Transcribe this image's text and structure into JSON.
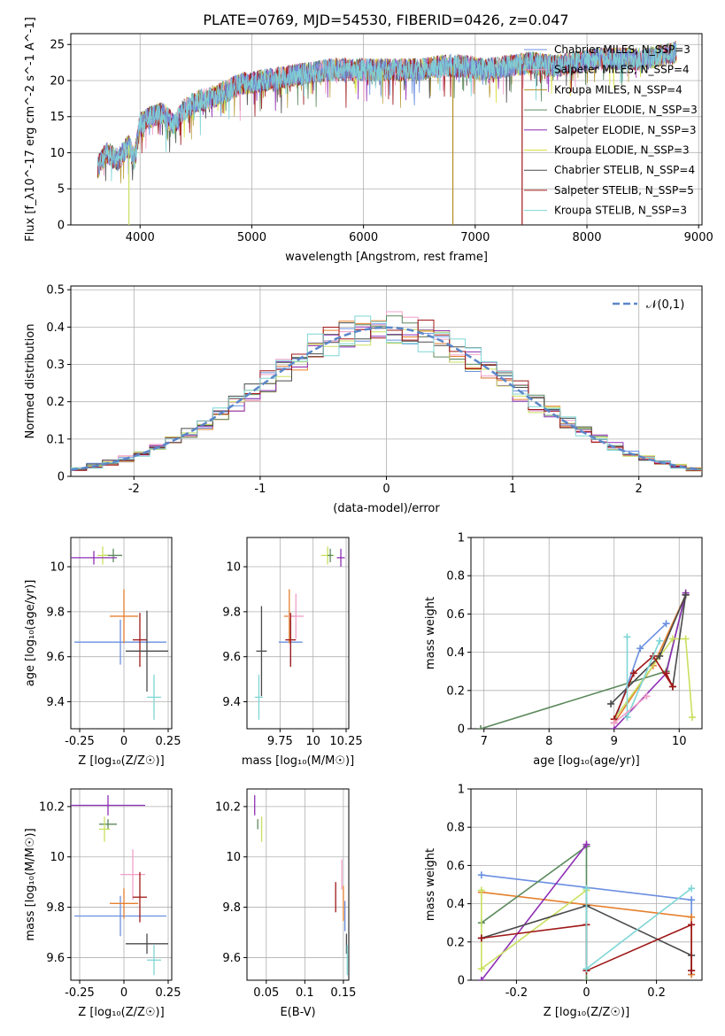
{
  "title": "PLATE=0769, MJD=54530, FIBERID=0426, z=0.047",
  "colors": [
    "#6a8fe0",
    "#e5802e",
    "#8e8e8e",
    "#5d8a5d",
    "#8e2fb5",
    "#c9e060",
    "#4a4a4a",
    "#a01818",
    "#7fd6d6"
  ],
  "chart_data": [
    {
      "id": "spectrum",
      "type": "line",
      "xlabel": "wavelength [Angstrom, rest frame]",
      "ylabel": "Flux [f_λ10^-17 erg cm^-2 s^-1 A^-1]",
      "xlim": [
        3380,
        9030
      ],
      "ylim": [
        0,
        26.5
      ],
      "xticks": [
        4000,
        5000,
        6000,
        7000,
        8000,
        9000
      ],
      "yticks": [
        0,
        5,
        10,
        15,
        20,
        25
      ],
      "legend_position": "right",
      "series": [
        {
          "name": "Chabrier MILES, N_SSP=3",
          "color": "#6a8fe0"
        },
        {
          "name": "Salpeter MILES, N_SSP=4",
          "color": "#f0a0c8"
        },
        {
          "name": "Kroupa MILES, N_SSP=4",
          "color": "#b09020"
        },
        {
          "name": "Chabrier ELODIE, N_SSP=3",
          "color": "#5d8a5d"
        },
        {
          "name": "Salpeter ELODIE, N_SSP=3",
          "color": "#8e2fb5"
        },
        {
          "name": "Kroupa ELODIE, N_SSP=3",
          "color": "#d8e040"
        },
        {
          "name": "Chabrier STELIB, N_SSP=4",
          "color": "#4a4a4a"
        },
        {
          "name": "Salpeter STELIB, N_SSP=5",
          "color": "#a01818"
        },
        {
          "name": "Kroupa STELIB, N_SSP=3",
          "color": "#7fd6d6"
        }
      ],
      "envelope": {
        "x": [
          3620,
          3700,
          3800,
          3900,
          3950,
          4000,
          4100,
          4200,
          4300,
          4400,
          4500,
          4700,
          4900,
          5100,
          5300,
          5500,
          5700,
          5900,
          6100,
          6300,
          6500,
          6700,
          6900,
          7100,
          7300,
          7500,
          7700,
          7900,
          8100,
          8300,
          8500,
          8700,
          8800
        ],
        "y": [
          8,
          10,
          9,
          11,
          9,
          14,
          15,
          15.5,
          14,
          16,
          17,
          18,
          19.5,
          20,
          20.5,
          21,
          21.5,
          21.5,
          21.5,
          21.5,
          21.5,
          22,
          22,
          21.5,
          22,
          22.5,
          22,
          22.5,
          23,
          23,
          23,
          23.5,
          24
        ]
      }
    },
    {
      "id": "residuals",
      "type": "histogram",
      "xlabel": "(data-model)/error",
      "ylabel": "Normed distribution",
      "xlim": [
        -2.5,
        2.5
      ],
      "ylim": [
        0,
        0.51
      ],
      "xticks": [
        -2,
        -1,
        0,
        1,
        2
      ],
      "yticks": [
        0.0,
        0.1,
        0.2,
        0.3,
        0.4,
        0.5
      ],
      "legend": [
        {
          "name": "𝒩(0,1)",
          "color": "#6a8fe0",
          "style": "dashed"
        }
      ],
      "legend_position": "top-right",
      "reference_curve": "normal(0,1)"
    },
    {
      "id": "age-vs-Z",
      "type": "errorbar",
      "xlabel": "Z [log₁₀(Z/Z☉)]",
      "ylabel": "age  [log₁₀(age/yr)]",
      "xlim": [
        -0.3,
        0.27
      ],
      "ylim": [
        9.28,
        10.13
      ],
      "xticks": [
        -0.25,
        0.0,
        0.25
      ],
      "yticks": [
        9.4,
        9.6,
        9.8,
        10.0
      ],
      "points": [
        {
          "x": -0.02,
          "xerr": 0.26,
          "y": 9.665,
          "yerr": 0.1,
          "color": "#6a8fe0"
        },
        {
          "x": 0.0,
          "xerr": 0.08,
          "y": 9.78,
          "yerr": 0.12,
          "color": "#e5802e"
        },
        {
          "x": 0.09,
          "xerr": 0.04,
          "y": 9.675,
          "yerr": 0.12,
          "color": "#a01818"
        },
        {
          "x": 0.13,
          "xerr": 0.12,
          "y": 9.625,
          "yerr": 0.18,
          "color": "#4a4a4a"
        },
        {
          "x": 0.17,
          "xerr": 0.04,
          "y": 9.42,
          "yerr": 0.1,
          "color": "#7fd6d6"
        },
        {
          "x": -0.06,
          "xerr": 0.05,
          "y": 10.05,
          "yerr": 0.03,
          "color": "#5d8a5d"
        },
        {
          "x": -0.12,
          "xerr": 0.03,
          "y": 10.05,
          "yerr": 0.04,
          "color": "#c9e060"
        },
        {
          "x": -0.17,
          "xerr": 0.13,
          "y": 10.04,
          "yerr": 0.03,
          "color": "#8e2fb5"
        }
      ]
    },
    {
      "id": "age-vs-mass",
      "type": "errorbar",
      "xlabel": "mass [log₁₀(M/M☉)]",
      "ylabel": "",
      "xlim": [
        9.5,
        10.27
      ],
      "ylim": [
        9.28,
        10.13
      ],
      "xticks": [
        9.75,
        10.0,
        10.25
      ],
      "yticks": [
        9.4,
        9.6,
        9.8,
        10.0
      ],
      "points": [
        {
          "x": 9.61,
          "xerr": 0.04,
          "y": 9.625,
          "yerr": 0.2,
          "color": "#4a4a4a"
        },
        {
          "x": 9.59,
          "xerr": 0.03,
          "y": 9.42,
          "yerr": 0.1,
          "color": "#7fd6d6"
        },
        {
          "x": 9.83,
          "xerr": 0.09,
          "y": 9.665,
          "yerr": 0.1,
          "color": "#6a8fe0"
        },
        {
          "x": 9.82,
          "xerr": 0.04,
          "y": 9.78,
          "yerr": 0.12,
          "color": "#e5802e"
        },
        {
          "x": 9.87,
          "xerr": 0.06,
          "y": 9.78,
          "yerr": 0.1,
          "color": "#f0a0c8"
        },
        {
          "x": 9.83,
          "xerr": 0.04,
          "y": 9.675,
          "yerr": 0.12,
          "color": "#a01818"
        },
        {
          "x": 10.11,
          "xerr": 0.05,
          "y": 10.05,
          "yerr": 0.04,
          "color": "#c9e060"
        },
        {
          "x": 10.13,
          "xerr": 0.02,
          "y": 10.05,
          "yerr": 0.03,
          "color": "#5d8a5d"
        },
        {
          "x": 10.21,
          "xerr": 0.03,
          "y": 10.04,
          "yerr": 0.04,
          "color": "#8e2fb5"
        }
      ]
    },
    {
      "id": "weight-vs-age",
      "type": "line",
      "xlabel": "age  [log₁₀(age/yr)]",
      "ylabel": "mass weight",
      "xlim": [
        6.8,
        10.35
      ],
      "ylim": [
        0,
        1.0
      ],
      "xticks": [
        7,
        8,
        9,
        10
      ],
      "yticks": [
        0.0,
        0.2,
        0.4,
        0.6,
        0.8,
        1.0
      ],
      "series": [
        {
          "color": "#6a8fe0",
          "x": [
            9.0,
            9.4,
            9.8
          ],
          "y": [
            0.03,
            0.42,
            0.55
          ]
        },
        {
          "color": "#e5802e",
          "x": [
            9.0,
            9.6,
            10.1
          ],
          "y": [
            0.03,
            0.33,
            0.7
          ]
        },
        {
          "color": "#5d8a5d",
          "x": [
            6.95,
            9.8,
            10.1
          ],
          "y": [
            0.0,
            0.3,
            0.7
          ]
        },
        {
          "color": "#8e2fb5",
          "x": [
            9.0,
            9.8,
            10.1
          ],
          "y": [
            0.0,
            0.29,
            0.71
          ]
        },
        {
          "color": "#c9e060",
          "x": [
            9.0,
            9.9,
            10.1,
            10.2
          ],
          "y": [
            0.05,
            0.47,
            0.47,
            0.06
          ]
        },
        {
          "color": "#4a4a4a",
          "x": [
            8.95,
            9.7,
            10.1,
            9.9
          ],
          "y": [
            0.13,
            0.38,
            0.7,
            0.22
          ]
        },
        {
          "color": "#a01818",
          "x": [
            9.0,
            9.3,
            9.6,
            9.9,
            9.8
          ],
          "y": [
            0.05,
            0.29,
            0.38,
            0.22,
            0.29
          ]
        },
        {
          "color": "#7fd6d6",
          "x": [
            9.2,
            9.2,
            9.7
          ],
          "y": [
            0.48,
            0.06,
            0.46
          ]
        },
        {
          "color": "#f0a0c8",
          "x": [
            9.0,
            9.5
          ],
          "y": [
            0.03,
            0.17
          ]
        }
      ]
    },
    {
      "id": "mass-vs-Z",
      "type": "errorbar",
      "xlabel": "Z [log₁₀(Z/Z☉)]",
      "ylabel": "mass [log₁₀(M/M☉)]",
      "xlim": [
        -0.3,
        0.27
      ],
      "ylim": [
        9.51,
        10.27
      ],
      "xticks": [
        -0.25,
        0.0,
        0.25
      ],
      "yticks": [
        9.6,
        9.8,
        10.0,
        10.2
      ],
      "points": [
        {
          "x": -0.09,
          "xerr": 0.21,
          "y": 10.205,
          "yerr": 0.04,
          "color": "#8e2fb5"
        },
        {
          "x": -0.09,
          "xerr": 0.05,
          "y": 10.13,
          "yerr": 0.02,
          "color": "#5d8a5d"
        },
        {
          "x": -0.11,
          "xerr": 0.03,
          "y": 10.11,
          "yerr": 0.05,
          "color": "#c9e060"
        },
        {
          "x": -0.02,
          "xerr": 0.26,
          "y": 9.765,
          "yerr": 0.08,
          "color": "#6a8fe0"
        },
        {
          "x": 0.0,
          "xerr": 0.08,
          "y": 9.815,
          "yerr": 0.06,
          "color": "#e5802e"
        },
        {
          "x": 0.05,
          "xerr": 0.07,
          "y": 9.93,
          "yerr": 0.1,
          "color": "#f0a0c8"
        },
        {
          "x": 0.09,
          "xerr": 0.04,
          "y": 9.84,
          "yerr": 0.1,
          "color": "#a01818"
        },
        {
          "x": 0.13,
          "xerr": 0.12,
          "y": 9.655,
          "yerr": 0.04,
          "color": "#4a4a4a"
        },
        {
          "x": 0.17,
          "xerr": 0.04,
          "y": 9.59,
          "yerr": 0.06,
          "color": "#7fd6d6"
        }
      ]
    },
    {
      "id": "mass-vs-EBV",
      "type": "errorbar",
      "xlabel": "E(B-V)",
      "ylabel": "",
      "xlim": [
        0.025,
        0.157
      ],
      "ylim": [
        9.51,
        10.27
      ],
      "xticks": [
        0.05,
        0.1,
        0.15
      ],
      "yticks": [
        9.6,
        9.8,
        10.0,
        10.2
      ],
      "points": [
        {
          "x": 0.035,
          "y": 10.205,
          "yerr": 0.04,
          "color": "#8e2fb5"
        },
        {
          "x": 0.039,
          "y": 10.13,
          "yerr": 0.02,
          "color": "#5d8a5d"
        },
        {
          "x": 0.044,
          "y": 10.11,
          "yerr": 0.05,
          "color": "#c9e060"
        },
        {
          "x": 0.14,
          "y": 9.84,
          "yerr": 0.06,
          "color": "#a01818"
        },
        {
          "x": 0.148,
          "y": 9.93,
          "yerr": 0.06,
          "color": "#f0a0c8"
        },
        {
          "x": 0.15,
          "y": 9.815,
          "yerr": 0.07,
          "color": "#e5802e"
        },
        {
          "x": 0.152,
          "y": 9.765,
          "yerr": 0.06,
          "color": "#6a8fe0"
        },
        {
          "x": 0.154,
          "y": 9.655,
          "yerr": 0.04,
          "color": "#4a4a4a"
        },
        {
          "x": 0.155,
          "y": 9.59,
          "yerr": 0.06,
          "color": "#7fd6d6"
        }
      ]
    },
    {
      "id": "weight-vs-Z",
      "type": "line",
      "xlabel": "Z [log₁₀(Z/Z☉)]",
      "ylabel": "mass weight",
      "xlim": [
        -0.33,
        0.33
      ],
      "ylim": [
        0,
        1.0
      ],
      "xticks": [
        -0.2,
        0.0,
        0.2
      ],
      "yticks": [
        0.0,
        0.2,
        0.4,
        0.6,
        0.8,
        1.0
      ],
      "series": [
        {
          "color": "#6a8fe0",
          "x": [
            -0.3,
            0.3,
            0.3
          ],
          "y": [
            0.55,
            0.42,
            0.03
          ]
        },
        {
          "color": "#e5802e",
          "x": [
            -0.3,
            0.3,
            0.3
          ],
          "y": [
            0.46,
            0.33,
            0.03
          ]
        },
        {
          "color": "#5d8a5d",
          "x": [
            -0.3,
            0.0,
            0.0
          ],
          "y": [
            0.3,
            0.7,
            0.0
          ]
        },
        {
          "color": "#8e2fb5",
          "x": [
            -0.3,
            0.0
          ],
          "y": [
            0.0,
            0.71
          ]
        },
        {
          "color": "#c9e060",
          "x": [
            -0.3,
            -0.3,
            0.0
          ],
          "y": [
            0.47,
            0.06,
            0.47
          ]
        },
        {
          "color": "#4a4a4a",
          "x": [
            -0.3,
            0.0,
            0.3,
            0.3
          ],
          "y": [
            0.22,
            0.39,
            0.13,
            0.05
          ]
        },
        {
          "color": "#a01818",
          "x": [
            -0.3,
            0.0,
            0.0,
            0.3,
            0.3
          ],
          "y": [
            0.22,
            0.29,
            0.05,
            0.29,
            0.05
          ]
        },
        {
          "color": "#7fd6d6",
          "x": [
            0.0,
            0.0,
            0.3
          ],
          "y": [
            0.48,
            0.06,
            0.48
          ]
        }
      ]
    }
  ]
}
